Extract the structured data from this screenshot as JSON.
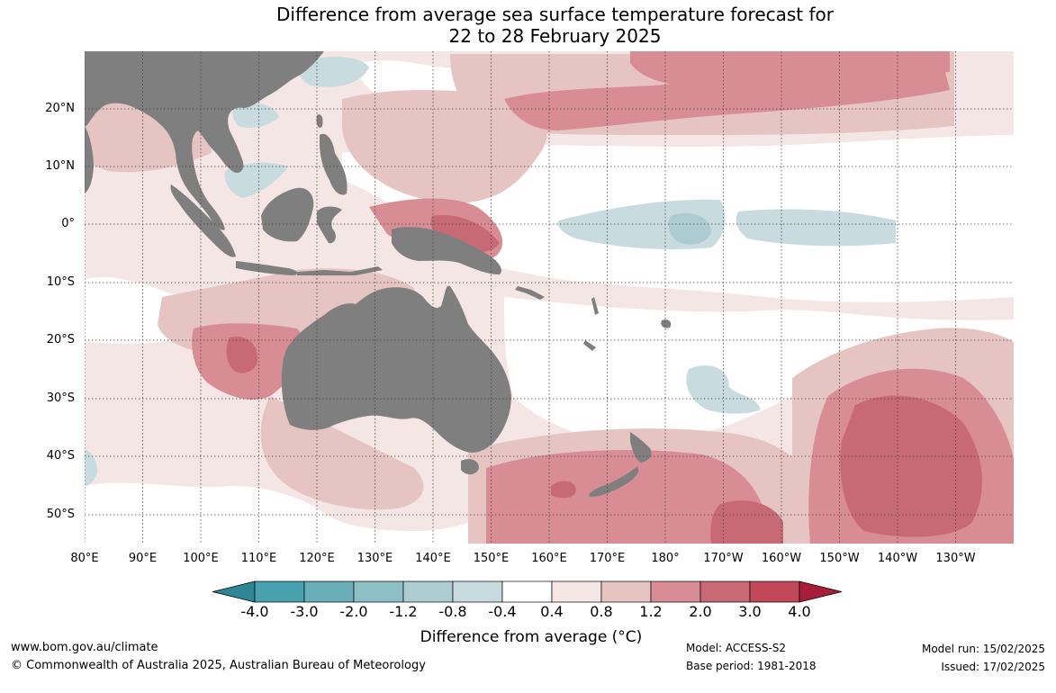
{
  "title": {
    "line1": "Difference from average sea surface temperature forecast for",
    "line2": "22 to 28 February 2025"
  },
  "map": {
    "lat_labels": [
      "20°N",
      "10°N",
      "0°",
      "10°S",
      "20°S",
      "30°S",
      "40°S",
      "50°S"
    ],
    "lon_labels": [
      "80°E",
      "90°E",
      "100°E",
      "110°E",
      "120°E",
      "130°E",
      "140°E",
      "150°E",
      "160°E",
      "170°E",
      "180°",
      "170°W",
      "160°W",
      "150°W",
      "140°W",
      "130°W"
    ],
    "land_color": "#7f7f7f"
  },
  "colorbar": {
    "labels": [
      "-4.0",
      "-3.0",
      "-2.0",
      "-1.2",
      "-0.8",
      "-0.4",
      "0.4",
      "0.8",
      "1.2",
      "2.0",
      "3.0",
      "4.0"
    ],
    "colors": [
      "#2f8695",
      "#48a1ae",
      "#6aaeb9",
      "#8dbfc7",
      "#adccd1",
      "#c8dbde",
      "#ffffff",
      "#f4e6e5",
      "#e6c4c1",
      "#d88c93",
      "#c86a76",
      "#c04858",
      "#a61e38"
    ],
    "title": "Difference from average (°C)"
  },
  "footer": {
    "url": "www.bom.gov.au/climate",
    "copyright": "© Commonwealth of Australia 2025, Australian Bureau of Meteorology",
    "model": "Model: ACCESS-S2",
    "base_period": "Base period: 1981-2018",
    "model_run": "Model run: 15/02/2025",
    "issued": "Issued: 17/02/2025"
  }
}
